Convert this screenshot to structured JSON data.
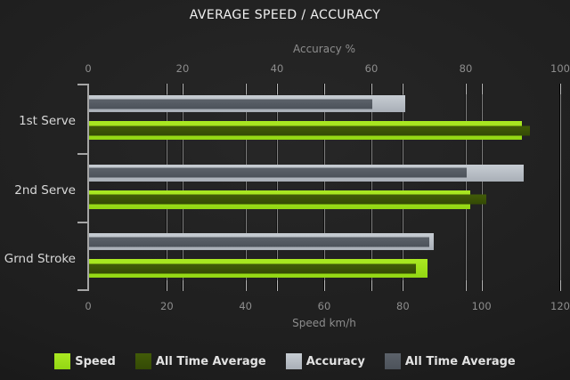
{
  "chart_data": {
    "type": "bar",
    "orientation": "horizontal",
    "title": "AVERAGE SPEED / ACCURACY",
    "categories": [
      "1st Serve",
      "2nd Serve",
      "Grnd Stroke"
    ],
    "axes": {
      "top": {
        "label": "Accuracy %",
        "min": 0,
        "max": 100,
        "ticks": [
          0,
          20,
          40,
          60,
          80,
          100
        ]
      },
      "bottom": {
        "label": "Speed km/h",
        "min": 0,
        "max": 120,
        "ticks": [
          0,
          20,
          40,
          60,
          80,
          100,
          120
        ]
      }
    },
    "series": [
      {
        "name": "Speed",
        "axis": "bottom",
        "color": "#9fe31c",
        "values": [
          110,
          97,
          86
        ]
      },
      {
        "name": "All Time Average",
        "axis": "bottom",
        "color": "#3b5306",
        "values": [
          112,
          101,
          83
        ]
      },
      {
        "name": "Accuracy",
        "axis": "top",
        "color": "#b9bec5",
        "values": [
          67,
          92,
          73
        ]
      },
      {
        "name": "All Time Average",
        "axis": "top",
        "color": "#565c64",
        "values": [
          60,
          80,
          72
        ]
      }
    ],
    "legend_position": "bottom",
    "grid": true,
    "colors": {
      "background": "#1e1e1e",
      "grid_line": "#7e7e7e",
      "axis_text": "#8d8d8d",
      "category_text": "#d8d8d8",
      "title_text": "#f0f0f0"
    }
  }
}
